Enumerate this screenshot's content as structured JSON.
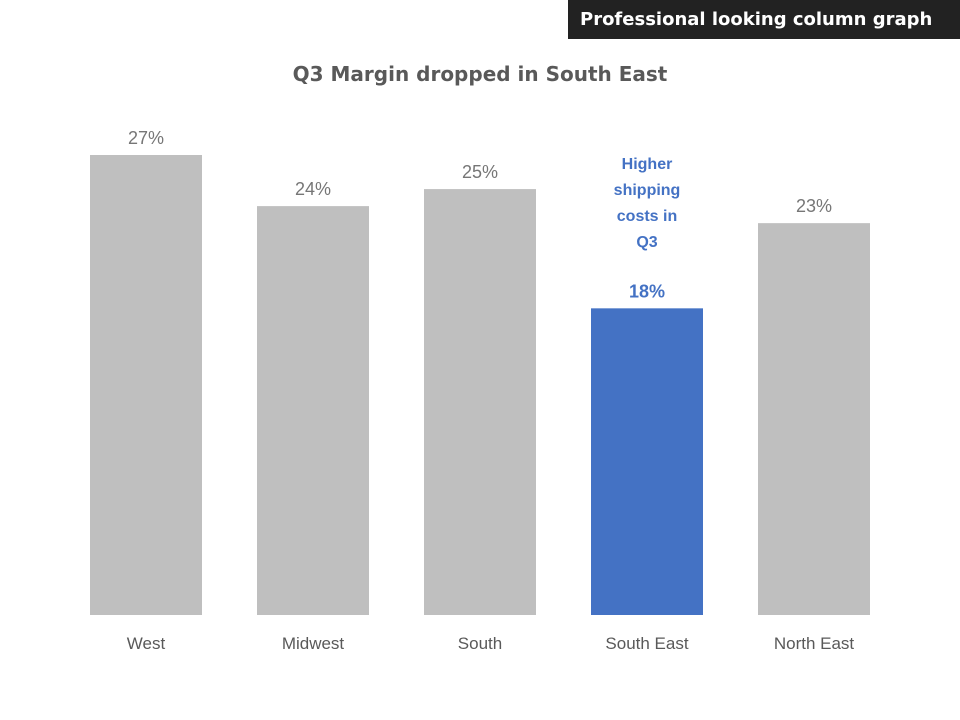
{
  "banner": "Professional looking column graph",
  "chart_data": {
    "type": "bar",
    "title": "Q3 Margin dropped in South East",
    "categories": [
      "West",
      "Midwest",
      "South",
      "South East",
      "North East"
    ],
    "values": [
      27,
      24,
      25,
      18,
      23
    ],
    "data_labels": [
      "27%",
      "24%",
      "25%",
      "18%",
      "23%"
    ],
    "highlight_index": 3,
    "annotation": {
      "category": "South East",
      "lines": [
        "Higher",
        "shipping",
        "costs in",
        "Q3"
      ]
    },
    "ylim": [
      0,
      27
    ],
    "grid": false,
    "colors": {
      "default": "#bfbfbf",
      "highlight": "#4472c4",
      "label": "#767676",
      "highlight_label": "#4472c4",
      "axis_label": "#595959"
    }
  }
}
